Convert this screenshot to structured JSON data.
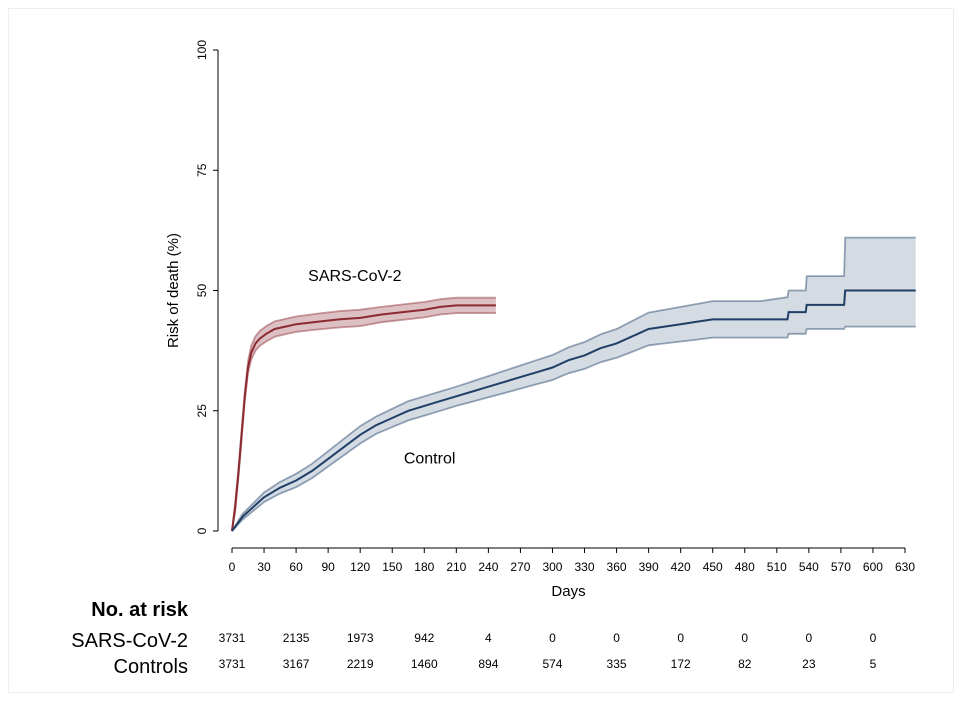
{
  "chart_data": {
    "type": "line",
    "xlabel": "Days",
    "ylabel": "Risk of death (%)",
    "xlim": [
      0,
      640
    ],
    "ylim": [
      0,
      100
    ],
    "xticks": [
      "0",
      "30",
      "60",
      "90",
      "120",
      "150",
      "180",
      "210",
      "240",
      "270",
      "300",
      "330",
      "360",
      "390",
      "420",
      "450",
      "480",
      "510",
      "540",
      "570",
      "600",
      "630"
    ],
    "yticks": [
      "0",
      "25",
      "50",
      "75",
      "100"
    ],
    "grid": false,
    "series": [
      {
        "name": "SARS-CoV-2",
        "color": "#8b2a30",
        "band_color": "#dcc0c4",
        "points": [
          [
            0,
            0
          ],
          [
            3,
            5
          ],
          [
            6,
            12
          ],
          [
            9,
            20
          ],
          [
            12,
            28
          ],
          [
            15,
            34
          ],
          [
            18,
            37
          ],
          [
            22,
            39
          ],
          [
            26,
            40
          ],
          [
            32,
            41
          ],
          [
            40,
            42
          ],
          [
            50,
            42.5
          ],
          [
            60,
            43
          ],
          [
            80,
            43.5
          ],
          [
            100,
            44
          ],
          [
            120,
            44.3
          ],
          [
            140,
            45
          ],
          [
            160,
            45.5
          ],
          [
            180,
            46
          ],
          [
            195,
            46.6
          ],
          [
            210,
            46.9
          ],
          [
            247,
            46.9
          ]
        ],
        "upper": [
          [
            0,
            0
          ],
          [
            3,
            6
          ],
          [
            6,
            13
          ],
          [
            9,
            21
          ],
          [
            12,
            29
          ],
          [
            15,
            35.3
          ],
          [
            18,
            38.5
          ],
          [
            22,
            40.5
          ],
          [
            26,
            41.6
          ],
          [
            32,
            42.6
          ],
          [
            40,
            43.6
          ],
          [
            50,
            44.1
          ],
          [
            60,
            44.6
          ],
          [
            80,
            45.2
          ],
          [
            100,
            45.7
          ],
          [
            120,
            46
          ],
          [
            140,
            46.6
          ],
          [
            160,
            47.1
          ],
          [
            180,
            47.6
          ],
          [
            195,
            48.2
          ],
          [
            210,
            48.5
          ],
          [
            247,
            48.5
          ]
        ],
        "lower": [
          [
            0,
            0
          ],
          [
            3,
            4
          ],
          [
            6,
            11
          ],
          [
            9,
            19
          ],
          [
            12,
            27
          ],
          [
            15,
            32.8
          ],
          [
            18,
            35.6
          ],
          [
            22,
            37.5
          ],
          [
            26,
            38.5
          ],
          [
            32,
            39.4
          ],
          [
            40,
            40.4
          ],
          [
            50,
            40.9
          ],
          [
            60,
            41.4
          ],
          [
            80,
            41.9
          ],
          [
            100,
            42.3
          ],
          [
            120,
            42.6
          ],
          [
            140,
            43.4
          ],
          [
            160,
            43.9
          ],
          [
            180,
            44.4
          ],
          [
            195,
            45
          ],
          [
            210,
            45.3
          ],
          [
            247,
            45.3
          ]
        ]
      },
      {
        "name": "Control",
        "color": "#1f3f66",
        "band_color": "#d4dbe3",
        "points": [
          [
            0,
            0
          ],
          [
            10,
            3
          ],
          [
            20,
            5
          ],
          [
            30,
            7
          ],
          [
            45,
            9
          ],
          [
            60,
            10.5
          ],
          [
            75,
            12.5
          ],
          [
            90,
            15
          ],
          [
            105,
            17.5
          ],
          [
            120,
            20
          ],
          [
            135,
            22
          ],
          [
            150,
            23.5
          ],
          [
            165,
            25
          ],
          [
            180,
            26
          ],
          [
            195,
            27
          ],
          [
            210,
            28
          ],
          [
            225,
            29
          ],
          [
            240,
            30
          ],
          [
            255,
            31
          ],
          [
            270,
            32
          ],
          [
            285,
            33
          ],
          [
            300,
            34
          ],
          [
            315,
            35.5
          ],
          [
            330,
            36.5
          ],
          [
            345,
            38
          ],
          [
            360,
            39
          ],
          [
            375,
            40.5
          ],
          [
            390,
            42
          ],
          [
            405,
            42.5
          ],
          [
            420,
            43
          ],
          [
            435,
            43.5
          ],
          [
            450,
            44
          ],
          [
            465,
            44
          ],
          [
            480,
            44
          ],
          [
            495,
            44
          ],
          [
            520,
            44
          ],
          [
            521,
            45.5
          ],
          [
            537,
            45.5
          ],
          [
            538,
            47
          ],
          [
            573,
            47
          ],
          [
            574,
            50
          ],
          [
            640,
            50
          ]
        ],
        "upper": [
          [
            0,
            0
          ],
          [
            10,
            3.6
          ],
          [
            20,
            5.8
          ],
          [
            30,
            8
          ],
          [
            45,
            10.2
          ],
          [
            60,
            11.9
          ],
          [
            75,
            14
          ],
          [
            90,
            16.6
          ],
          [
            105,
            19.2
          ],
          [
            120,
            21.8
          ],
          [
            135,
            23.8
          ],
          [
            150,
            25.4
          ],
          [
            165,
            27
          ],
          [
            180,
            28
          ],
          [
            195,
            29
          ],
          [
            210,
            30
          ],
          [
            225,
            31.1
          ],
          [
            240,
            32.2
          ],
          [
            255,
            33.3
          ],
          [
            270,
            34.4
          ],
          [
            285,
            35.5
          ],
          [
            300,
            36.6
          ],
          [
            315,
            38.2
          ],
          [
            330,
            39.3
          ],
          [
            345,
            40.9
          ],
          [
            360,
            42
          ],
          [
            375,
            43.7
          ],
          [
            390,
            45.4
          ],
          [
            405,
            46
          ],
          [
            420,
            46.6
          ],
          [
            435,
            47.2
          ],
          [
            450,
            47.8
          ],
          [
            465,
            47.8
          ],
          [
            480,
            47.8
          ],
          [
            495,
            47.8
          ],
          [
            520,
            48.6
          ],
          [
            521,
            50
          ],
          [
            537,
            50
          ],
          [
            538,
            53
          ],
          [
            573,
            53
          ],
          [
            574,
            61
          ],
          [
            640,
            61
          ]
        ],
        "lower": [
          [
            0,
            0
          ],
          [
            10,
            2.4
          ],
          [
            20,
            4.2
          ],
          [
            30,
            6
          ],
          [
            45,
            7.8
          ],
          [
            60,
            9.1
          ],
          [
            75,
            11
          ],
          [
            90,
            13.4
          ],
          [
            105,
            15.8
          ],
          [
            120,
            18.2
          ],
          [
            135,
            20.2
          ],
          [
            150,
            21.6
          ],
          [
            165,
            23
          ],
          [
            180,
            24
          ],
          [
            195,
            25
          ],
          [
            210,
            26
          ],
          [
            225,
            26.9
          ],
          [
            240,
            27.8
          ],
          [
            255,
            28.7
          ],
          [
            270,
            29.6
          ],
          [
            285,
            30.5
          ],
          [
            300,
            31.4
          ],
          [
            315,
            32.8
          ],
          [
            330,
            33.7
          ],
          [
            345,
            35.1
          ],
          [
            360,
            36
          ],
          [
            375,
            37.3
          ],
          [
            390,
            38.6
          ],
          [
            405,
            39
          ],
          [
            420,
            39.4
          ],
          [
            435,
            39.8
          ],
          [
            450,
            40.2
          ],
          [
            465,
            40.2
          ],
          [
            480,
            40.2
          ],
          [
            495,
            40.2
          ],
          [
            520,
            40.2
          ],
          [
            521,
            41
          ],
          [
            537,
            41
          ],
          [
            538,
            42
          ],
          [
            573,
            42
          ],
          [
            574,
            42.5
          ],
          [
            640,
            42.5
          ]
        ]
      }
    ],
    "annotations": [
      {
        "text": "SARS-CoV-2",
        "x": 115,
        "y": 52
      },
      {
        "text": "Control",
        "x": 185,
        "y": 14
      }
    ],
    "risk_table": {
      "title": "No. at risk",
      "rows": [
        {
          "group": "SARS-CoV-2",
          "values": [
            "3731",
            "2135",
            "1973",
            "942",
            "4",
            "0",
            "0",
            "0",
            "0",
            "0",
            "0"
          ]
        },
        {
          "group": "Controls",
          "values": [
            "3731",
            "3167",
            "2219",
            "1460",
            "894",
            "574",
            "335",
            "172",
            "82",
            "23",
            "5"
          ]
        }
      ]
    }
  }
}
